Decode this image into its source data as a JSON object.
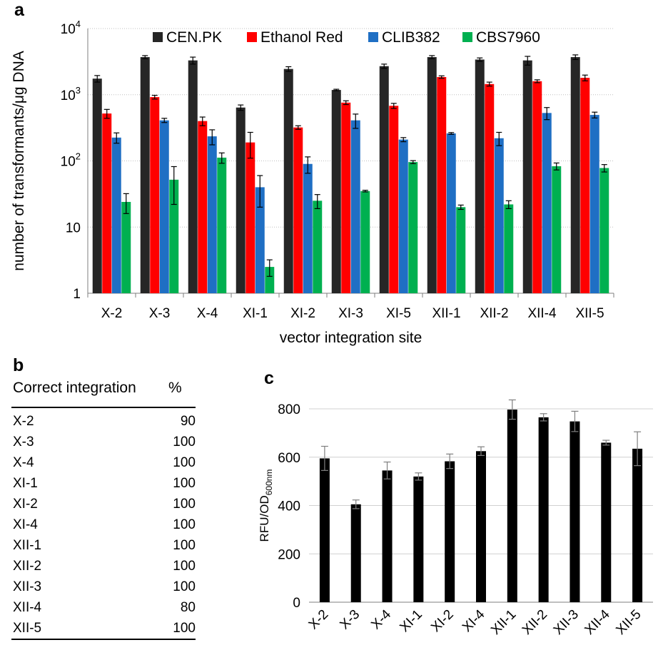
{
  "panels": {
    "a": "a",
    "b": "b",
    "c": "c"
  },
  "chart_data": [
    {
      "type": "bar",
      "panel": "a",
      "title": "",
      "xlabel": "vector integration site",
      "ylabel": "number of transformants/μg DNA",
      "yscale": "log",
      "ylim": [
        1,
        10000
      ],
      "yticks": [
        {
          "value": 1,
          "base": "1",
          "exp": ""
        },
        {
          "value": 10,
          "base": "10",
          "exp": ""
        },
        {
          "value": 100,
          "base": "10",
          "exp": "2"
        },
        {
          "value": 1000,
          "base": "10",
          "exp": "3"
        },
        {
          "value": 10000,
          "base": "10",
          "exp": "4"
        }
      ],
      "grid": true,
      "legend_position": "top",
      "categories": [
        "X-2",
        "X-3",
        "X-4",
        "XI-1",
        "XI-2",
        "XI-3",
        "XI-5",
        "XII-1",
        "XII-2",
        "XII-4",
        "XII-5"
      ],
      "series": [
        {
          "name": "CEN.PK",
          "color": "#262626",
          "values": [
            1750,
            3700,
            3300,
            640,
            2450,
            1180,
            2700,
            3700,
            3400,
            3300,
            3700
          ],
          "errors": [
            200,
            200,
            400,
            60,
            200,
            30,
            200,
            200,
            200,
            500,
            300
          ]
        },
        {
          "name": "Ethanol Red",
          "color": "#ff0000",
          "values": [
            520,
            920,
            400,
            190,
            320,
            760,
            680,
            1850,
            1450,
            1600,
            1800
          ],
          "errors": [
            80,
            60,
            60,
            80,
            20,
            50,
            60,
            80,
            100,
            80,
            180
          ]
        },
        {
          "name": "CLIB382",
          "color": "#1f6fc4",
          "values": [
            225,
            410,
            235,
            40,
            90,
            410,
            210,
            260,
            220,
            530,
            495
          ],
          "errors": [
            40,
            30,
            60,
            20,
            25,
            100,
            15,
            8,
            50,
            110,
            50
          ]
        },
        {
          "name": "CBS7960",
          "color": "#00b050",
          "values": [
            24,
            52,
            112,
            2.5,
            25,
            35,
            96,
            20,
            22,
            83,
            78
          ],
          "errors": [
            8,
            30,
            20,
            0.7,
            6,
            1,
            5,
            1.5,
            3,
            10,
            10
          ]
        }
      ]
    },
    {
      "type": "bar",
      "panel": "c",
      "title": "",
      "xlabel": "",
      "ylabel": "RFU/OD",
      "ylabel_sub": "600nm",
      "ylim": [
        0,
        800
      ],
      "yticks": [
        "0",
        "200",
        "400",
        "600",
        "800"
      ],
      "grid": true,
      "categories": [
        "X-2",
        "X-3",
        "X-4",
        "XI-1",
        "XI-2",
        "XI-4",
        "XII-1",
        "XII-2",
        "XII-3",
        "XII-4",
        "XII-5"
      ],
      "series": [
        {
          "color": "#000000",
          "values": [
            595,
            405,
            545,
            520,
            583,
            625,
            797,
            765,
            748,
            660,
            635
          ],
          "errors": [
            50,
            18,
            35,
            15,
            30,
            18,
            40,
            15,
            42,
            10,
            70
          ]
        }
      ]
    }
  ],
  "table_b": {
    "header_label": "Correct integration",
    "header_unit": "%",
    "rows": [
      {
        "site": "X-2",
        "value": "90"
      },
      {
        "site": "X-3",
        "value": "100"
      },
      {
        "site": "X-4",
        "value": "100"
      },
      {
        "site": "XI-1",
        "value": "100"
      },
      {
        "site": "XI-2",
        "value": "100"
      },
      {
        "site": "XI-4",
        "value": "100"
      },
      {
        "site": "XII-1",
        "value": "100"
      },
      {
        "site": "XII-2",
        "value": "100"
      },
      {
        "site": "XII-3",
        "value": "100"
      },
      {
        "site": "XII-4",
        "value": "80"
      },
      {
        "site": "XII-5",
        "value": "100"
      }
    ]
  }
}
